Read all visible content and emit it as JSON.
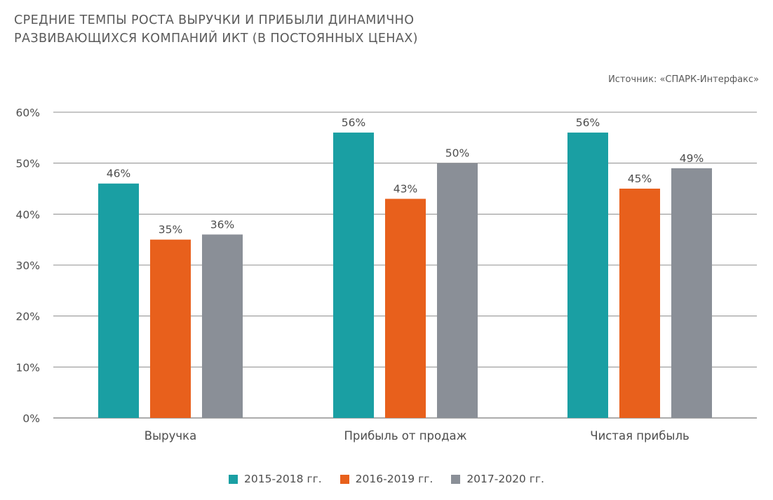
{
  "chart_data": {
    "type": "bar",
    "title": "СРЕДНИЕ ТЕМПЫ РОСТА ВЫРУЧКИ И ПРИБЫЛИ ДИНАМИЧНО РАЗВИВАЮЩИХСЯ КОМПАНИЙ ИКТ (В ПОСТОЯННЫХ ЦЕНАХ)",
    "title_lines": [
      "СРЕДНИЕ ТЕМПЫ РОСТА ВЫРУЧКИ И ПРИБЫЛИ ДИНАМИЧНО",
      "РАЗВИВАЮЩИХСЯ КОМПАНИЙ ИКТ (В ПОСТОЯННЫХ ЦЕНАХ)"
    ],
    "source": "Источник: «СПАРК-Интерфакс»",
    "categories": [
      "Выручка",
      "Прибыль от продаж",
      "Чистая прибыль"
    ],
    "series": [
      {
        "name": "2015-2018 гг.",
        "color": "#1a9fa3",
        "values": [
          46,
          56,
          56
        ],
        "labels": [
          "46%",
          "56%",
          "56%"
        ]
      },
      {
        "name": "2016-2019 гг.",
        "color": "#e8601c",
        "values": [
          35,
          43,
          45
        ],
        "labels": [
          "35%",
          "43%",
          "45%"
        ]
      },
      {
        "name": "2017-2020 гг.",
        "color": "#8a8f97",
        "values": [
          36,
          50,
          49
        ],
        "labels": [
          "36%",
          "50%",
          "49%"
        ]
      }
    ],
    "ylim": [
      0,
      60
    ],
    "yticks": [
      0,
      10,
      20,
      30,
      40,
      50,
      60
    ],
    "ytick_labels": [
      "0%",
      "10%",
      "20%",
      "30%",
      "40%",
      "50%",
      "60%"
    ],
    "grid": true,
    "legend_position": "bottom-center"
  }
}
